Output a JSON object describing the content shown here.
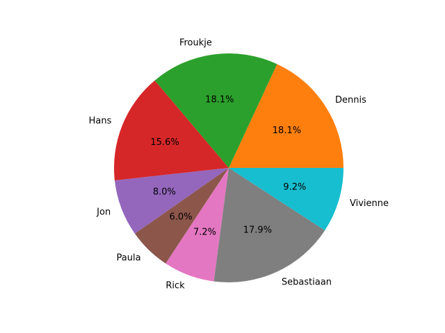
{
  "chart_data": {
    "type": "pie",
    "title": "",
    "start_angle_deg": 0,
    "direction": "counterclockwise",
    "slices": [
      {
        "label": "Dennis",
        "percent": 18.1,
        "percent_label": "18.1%",
        "color": "#ff7f0e"
      },
      {
        "label": "Froukje",
        "percent": 18.1,
        "percent_label": "18.1%",
        "color": "#2ca02c"
      },
      {
        "label": "Hans",
        "percent": 15.6,
        "percent_label": "15.6%",
        "color": "#d62728"
      },
      {
        "label": "Jon",
        "percent": 8.0,
        "percent_label": "8.0%",
        "color": "#9467bd"
      },
      {
        "label": "Paula",
        "percent": 6.0,
        "percent_label": "6.0%",
        "color": "#8c564b"
      },
      {
        "label": "Rick",
        "percent": 7.2,
        "percent_label": "7.2%",
        "color": "#e377c2"
      },
      {
        "label": "Sebastiaan",
        "percent": 17.9,
        "percent_label": "17.9%",
        "color": "#7f7f7f"
      },
      {
        "label": "Vivienne",
        "percent": 9.2,
        "percent_label": "9.2%",
        "color": "#17becf"
      }
    ]
  }
}
